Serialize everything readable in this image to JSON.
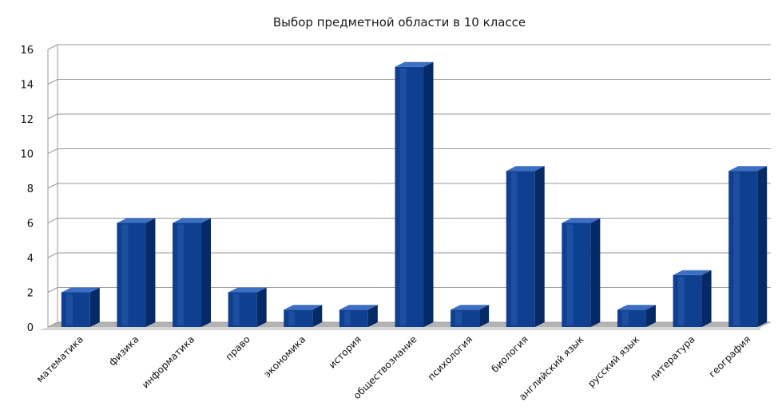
{
  "chart_data": {
    "type": "bar",
    "title": "Выбор предметной области в 10 классе",
    "xlabel": "",
    "ylabel": "",
    "ylim": [
      0,
      16
    ],
    "yticks": [
      "0",
      "2",
      "4",
      "6",
      "8",
      "10",
      "12",
      "14",
      "16"
    ],
    "grid": true,
    "legend": "none",
    "bar_color": "#0f3f8f",
    "categories": [
      "математика",
      "физика",
      "информатика",
      "право",
      "экономика",
      "история",
      "обществознание",
      "психология",
      "биология",
      "английский язык",
      "русский язык",
      "литература",
      "география"
    ],
    "values": [
      2,
      6,
      6,
      2,
      1,
      1,
      15,
      1,
      9,
      6,
      1,
      3,
      9
    ]
  }
}
